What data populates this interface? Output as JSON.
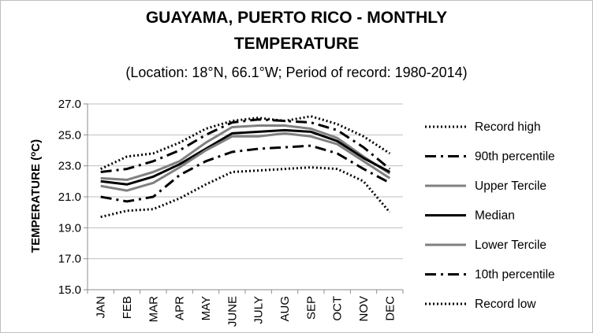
{
  "chart_data": {
    "type": "line",
    "title_line1": "GUAYAMA, PUERTO RICO - MONTHLY",
    "title_line2": "TEMPERATURE",
    "subtitle": "(Location: 18°N, 66.1°W; Period of record: 1980-2014)",
    "ylabel_main": "TEMPERATURE (",
    "ylabel_sup": "o",
    "ylabel_end": "C)",
    "xlabel": "",
    "ylim": [
      15.0,
      27.0
    ],
    "yticks": [
      "15.0",
      "17.0",
      "19.0",
      "21.0",
      "23.0",
      "25.0",
      "27.0"
    ],
    "categories": [
      "JAN",
      "FEB",
      "MAR",
      "APR",
      "MAY",
      "JUNE",
      "JULY",
      "AUG",
      "SEP",
      "OCT",
      "NOV",
      "DEC"
    ],
    "grid": "horizontal",
    "legend_position": "right",
    "series": [
      {
        "name": "Record high",
        "style": "dotted",
        "color": "#000000",
        "values": [
          22.8,
          23.6,
          23.8,
          24.5,
          25.4,
          25.9,
          26.1,
          25.9,
          26.2,
          25.7,
          24.9,
          23.8
        ]
      },
      {
        "name": "90th percentile",
        "style": "dashdot",
        "color": "#000000",
        "values": [
          22.6,
          22.8,
          23.3,
          24.0,
          25.0,
          25.8,
          26.0,
          25.9,
          25.8,
          25.3,
          24.2,
          22.8
        ]
      },
      {
        "name": "Upper Tercile",
        "style": "solid",
        "color": "#808080",
        "values": [
          22.2,
          22.1,
          22.6,
          23.3,
          24.5,
          25.5,
          25.6,
          25.6,
          25.4,
          24.8,
          23.6,
          22.5
        ]
      },
      {
        "name": "Median",
        "style": "solid",
        "color": "#000000",
        "values": [
          22.0,
          21.8,
          22.3,
          23.1,
          24.1,
          25.1,
          25.2,
          25.3,
          25.2,
          24.6,
          23.5,
          22.6
        ]
      },
      {
        "name": "Lower Tercile",
        "style": "solid",
        "color": "#808080",
        "values": [
          21.7,
          21.4,
          21.9,
          22.9,
          24.0,
          24.9,
          24.9,
          25.1,
          24.9,
          24.4,
          23.3,
          22.2
        ]
      },
      {
        "name": "10th percentile",
        "style": "dashdot",
        "color": "#000000",
        "values": [
          21.0,
          20.7,
          21.0,
          22.4,
          23.3,
          23.9,
          24.1,
          24.2,
          24.3,
          23.8,
          22.8,
          21.9
        ]
      },
      {
        "name": "Record low",
        "style": "dotted",
        "color": "#000000",
        "values": [
          19.7,
          20.1,
          20.2,
          20.9,
          21.8,
          22.6,
          22.7,
          22.8,
          22.9,
          22.8,
          22.0,
          20.0
        ]
      }
    ]
  }
}
